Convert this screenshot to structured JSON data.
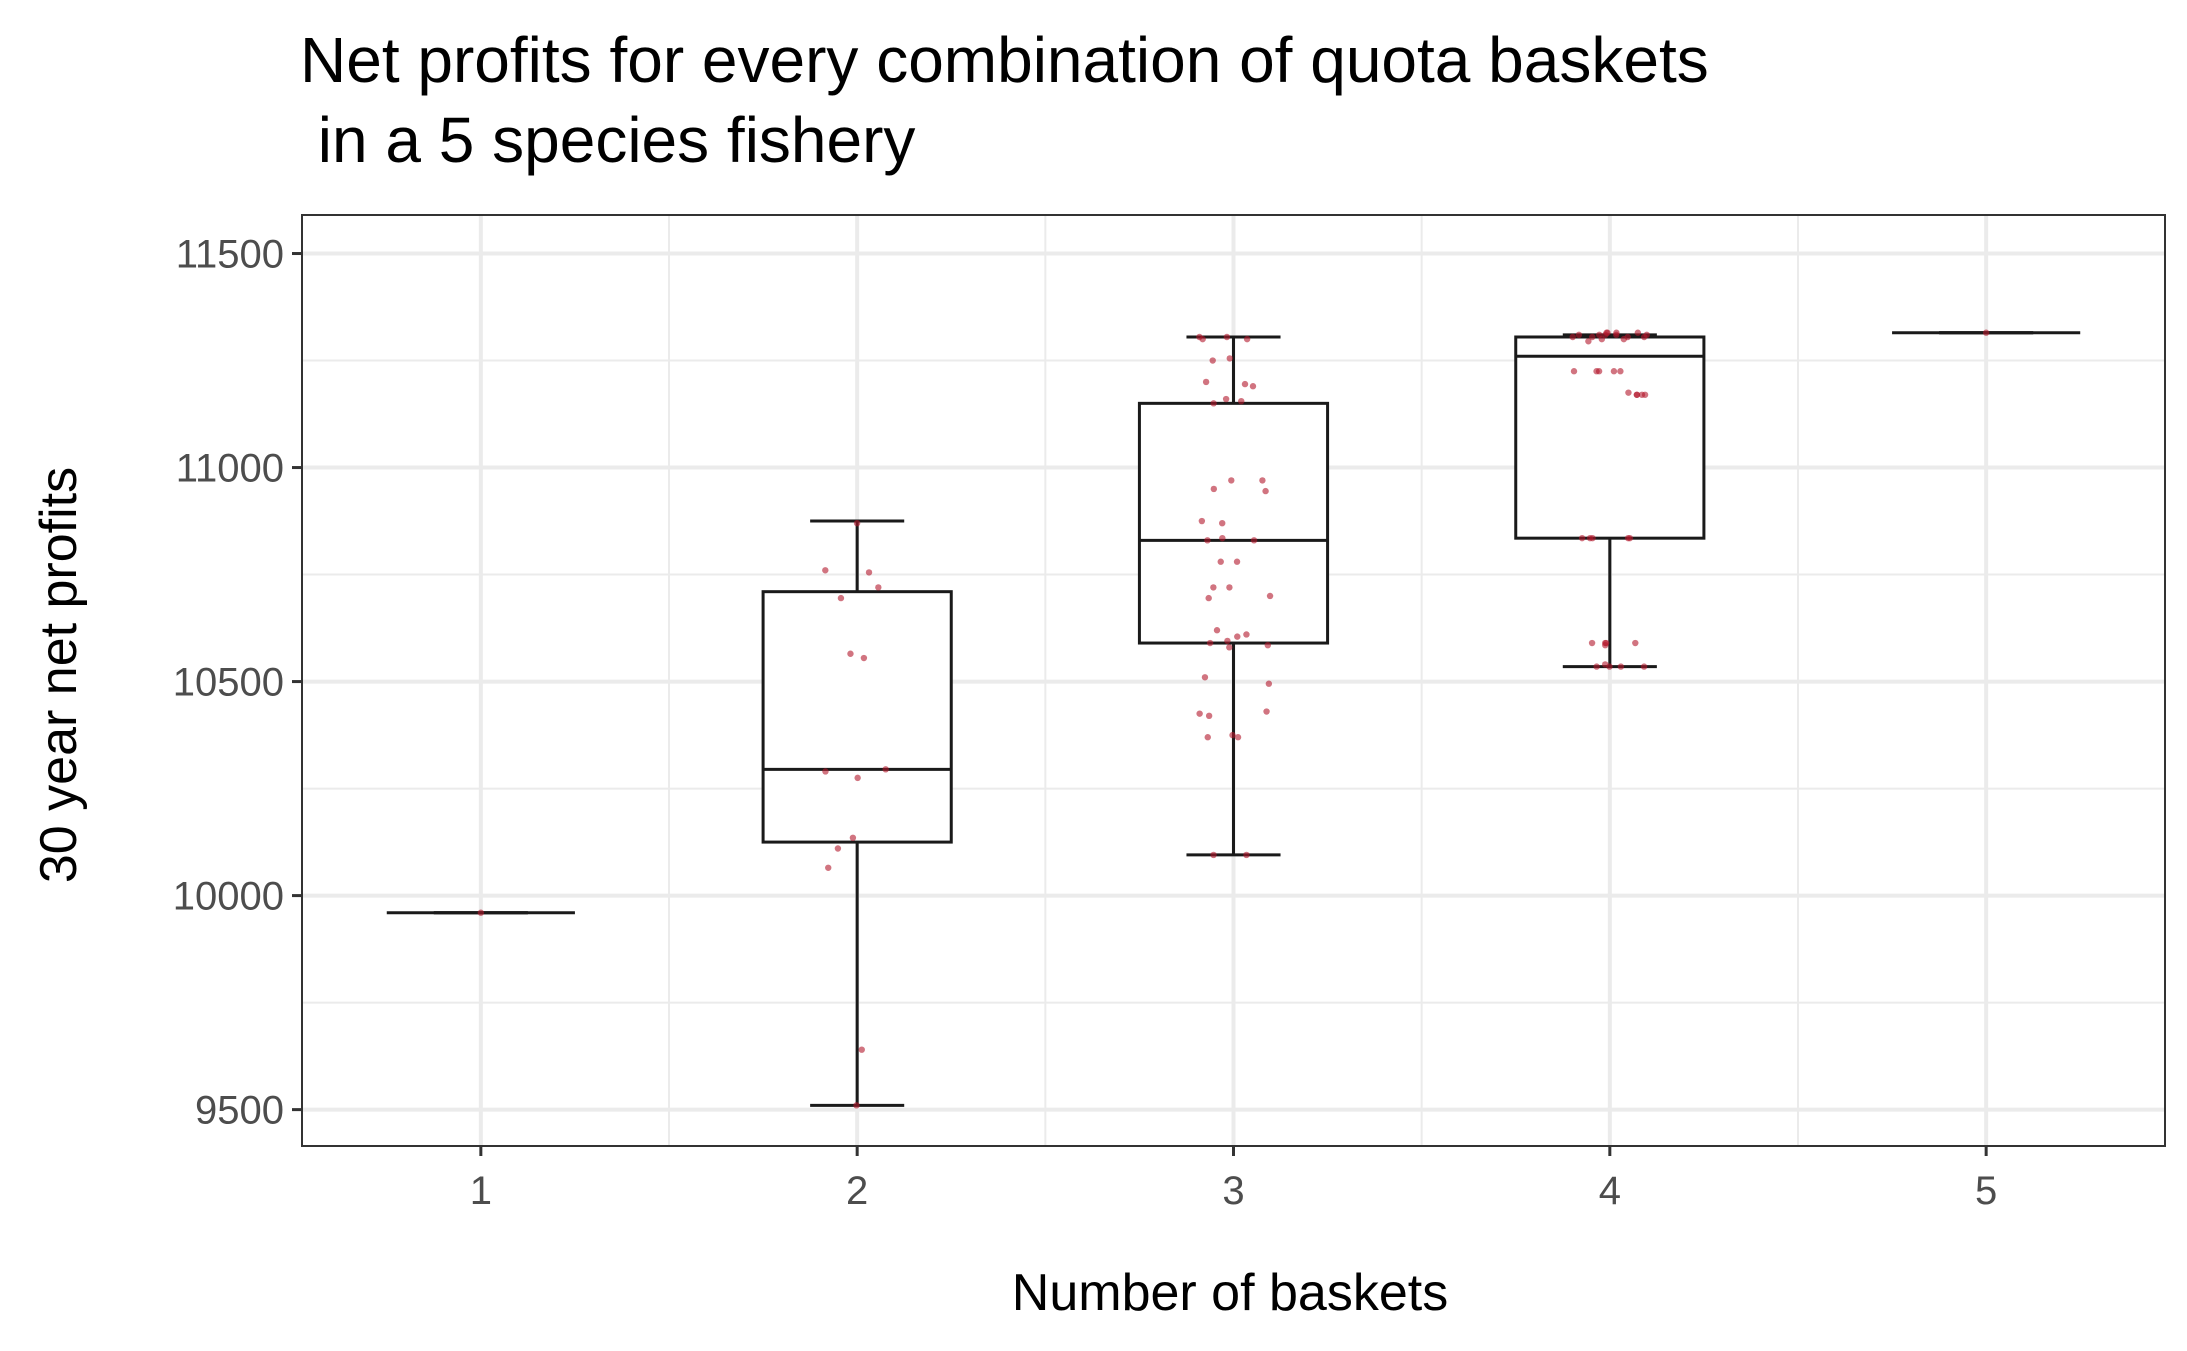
{
  "chart_data": {
    "type": "boxplot",
    "title_line1": "Net profits for every combination of quota baskets",
    "title_line2": " in a 5 species fishery",
    "xlabel": "Number of baskets",
    "ylabel": "30 year net profits",
    "categories": [
      "1",
      "2",
      "3",
      "4",
      "5"
    ],
    "yticks": [
      9500,
      10000,
      10500,
      11000,
      11500
    ],
    "ylim": [
      9415,
      11590
    ],
    "grid": true,
    "colors": {
      "points": "#b2182b",
      "box": "#1a1a1a",
      "grid": "#ebebeb",
      "panel_border": "#333333"
    },
    "boxes": [
      {
        "category": "1",
        "min": 9960,
        "q1": 9960,
        "median": 9960,
        "q3": 9960,
        "max": 9960
      },
      {
        "category": "2",
        "min": 9510,
        "q1": 10125,
        "median": 10295,
        "q3": 10710,
        "max": 10875
      },
      {
        "category": "3",
        "min": 10095,
        "q1": 10590,
        "median": 10830,
        "q3": 11150,
        "max": 11305
      },
      {
        "category": "4",
        "min": 10535,
        "q1": 10835,
        "median": 11260,
        "q3": 11305,
        "max": 11310
      },
      {
        "category": "5",
        "min": 11315,
        "q1": 11315,
        "median": 11315,
        "q3": 11315,
        "max": 11315
      }
    ],
    "points": [
      [
        1,
        9960
      ],
      [
        2,
        9510
      ],
      [
        2,
        9640
      ],
      [
        2,
        10065
      ],
      [
        2,
        10110
      ],
      [
        2,
        10135
      ],
      [
        2,
        10275
      ],
      [
        2,
        10290
      ],
      [
        2,
        10295
      ],
      [
        2,
        10555
      ],
      [
        2,
        10565
      ],
      [
        2,
        10695
      ],
      [
        2,
        10720
      ],
      [
        2,
        10755
      ],
      [
        2,
        10760
      ],
      [
        2,
        10870
      ],
      [
        3,
        10095
      ],
      [
        3,
        10095
      ],
      [
        3,
        10370
      ],
      [
        3,
        10370
      ],
      [
        3,
        10375
      ],
      [
        3,
        10420
      ],
      [
        3,
        10425
      ],
      [
        3,
        10430
      ],
      [
        3,
        10495
      ],
      [
        3,
        10510
      ],
      [
        3,
        10580
      ],
      [
        3,
        10585
      ],
      [
        3,
        10590
      ],
      [
        3,
        10595
      ],
      [
        3,
        10605
      ],
      [
        3,
        10610
      ],
      [
        3,
        10620
      ],
      [
        3,
        10695
      ],
      [
        3,
        10700
      ],
      [
        3,
        10720
      ],
      [
        3,
        10720
      ],
      [
        3,
        10780
      ],
      [
        3,
        10780
      ],
      [
        3,
        10830
      ],
      [
        3,
        10830
      ],
      [
        3,
        10835
      ],
      [
        3,
        10870
      ],
      [
        3,
        10875
      ],
      [
        3,
        10945
      ],
      [
        3,
        10950
      ],
      [
        3,
        10970
      ],
      [
        3,
        10970
      ],
      [
        3,
        11150
      ],
      [
        3,
        11155
      ],
      [
        3,
        11160
      ],
      [
        3,
        11190
      ],
      [
        3,
        11195
      ],
      [
        3,
        11200
      ],
      [
        3,
        11250
      ],
      [
        3,
        11255
      ],
      [
        3,
        11300
      ],
      [
        3,
        11305
      ],
      [
        3,
        11305
      ],
      [
        3,
        11300
      ],
      [
        4,
        10535
      ],
      [
        4,
        10535
      ],
      [
        4,
        10535
      ],
      [
        4,
        10540
      ],
      [
        4,
        10535
      ],
      [
        4,
        10590
      ],
      [
        4,
        10590
      ],
      [
        4,
        10590
      ],
      [
        4,
        10585
      ],
      [
        4,
        10590
      ],
      [
        4,
        10835
      ],
      [
        4,
        10835
      ],
      [
        4,
        10835
      ],
      [
        4,
        10835
      ],
      [
        4,
        10835
      ],
      [
        4,
        11170
      ],
      [
        4,
        11170
      ],
      [
        4,
        11170
      ],
      [
        4,
        11170
      ],
      [
        4,
        11175
      ],
      [
        4,
        11225
      ],
      [
        4,
        11225
      ],
      [
        4,
        11225
      ],
      [
        4,
        11225
      ],
      [
        4,
        11225
      ],
      [
        4,
        11295
      ],
      [
        4,
        11300
      ],
      [
        4,
        11300
      ],
      [
        4,
        11305
      ],
      [
        4,
        11305
      ],
      [
        4,
        11305
      ],
      [
        4,
        11305
      ],
      [
        4,
        11310
      ],
      [
        4,
        11310
      ],
      [
        4,
        11310
      ],
      [
        4,
        11310
      ],
      [
        4,
        11310
      ],
      [
        4,
        11315
      ],
      [
        4,
        11315
      ],
      [
        4,
        11315
      ],
      [
        4,
        11315
      ],
      [
        5,
        11315
      ]
    ]
  }
}
